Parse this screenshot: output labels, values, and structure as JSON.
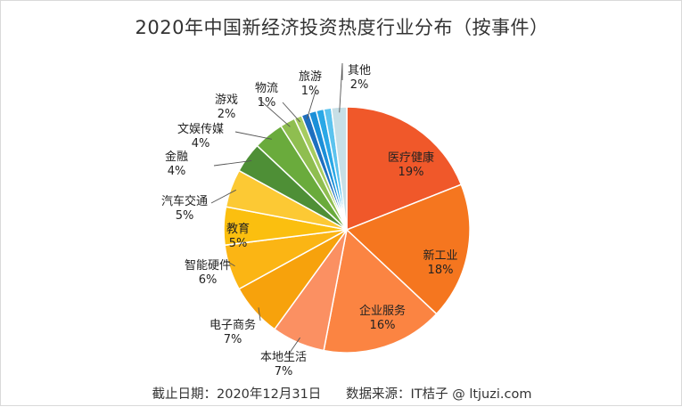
{
  "chart_data": {
    "type": "pie",
    "title": "2020年中国新经济投资热度行业分布（按事件）",
    "unit": "%",
    "slices": [
      {
        "label": "医疗健康",
        "value": 19,
        "value_label": "19%",
        "color": "#f0582a",
        "label_position": "inside"
      },
      {
        "label": "新工业",
        "value": 18,
        "value_label": "18%",
        "color": "#f5761f",
        "label_position": "inside"
      },
      {
        "label": "企业服务",
        "value": 16,
        "value_label": "16%",
        "color": "#fb8442",
        "label_position": "inside"
      },
      {
        "label": "本地生活",
        "value": 7,
        "value_label": "7%",
        "color": "#fb9062",
        "label_position": "outside"
      },
      {
        "label": "电子商务",
        "value": 7,
        "value_label": "7%",
        "color": "#f7a20c",
        "label_position": "outside"
      },
      {
        "label": "智能硬件",
        "value": 6,
        "value_label": "6%",
        "color": "#fbb514",
        "label_position": "outside"
      },
      {
        "label": "教育",
        "value": 5,
        "value_label": "5%",
        "color": "#fbbf0f",
        "label_position": "inside"
      },
      {
        "label": "汽车交通",
        "value": 5,
        "value_label": "5%",
        "color": "#fcc934",
        "label_position": "outside"
      },
      {
        "label": "金融",
        "value": 4,
        "value_label": "4%",
        "color": "#4e8f36",
        "label_position": "outside"
      },
      {
        "label": "文娱传媒",
        "value": 4,
        "value_label": "4%",
        "color": "#6aab3c",
        "label_position": "outside"
      },
      {
        "label": "游戏",
        "value": 2,
        "value_label": "2%",
        "color": "#8fbe50",
        "label_position": "outside"
      },
      {
        "label": "物流",
        "value": 1,
        "value_label": "1%",
        "color": "#a7cc60",
        "label_position": "outside"
      },
      {
        "label": "旅游",
        "value": 1,
        "value_label": "1%",
        "color": "#1e6fbf",
        "label_position": "outside"
      },
      {
        "label": "",
        "value": 1,
        "value_label": "",
        "color": "#1b8fd8",
        "label_position": "none"
      },
      {
        "label": "",
        "value": 1,
        "value_label": "",
        "color": "#2aa8e6",
        "label_position": "none"
      },
      {
        "label": "",
        "value": 1,
        "value_label": "",
        "color": "#5cc3ee",
        "label_position": "none"
      },
      {
        "label": "其他",
        "value": 2,
        "value_label": "2%",
        "color": "#c7dfe6",
        "label_position": "outside"
      }
    ],
    "legend": "none"
  },
  "footnote": {
    "date_label": "截止日期：2020年12月31日",
    "source_label": "数据来源：IT桔子 @ ltjuzi.com"
  }
}
